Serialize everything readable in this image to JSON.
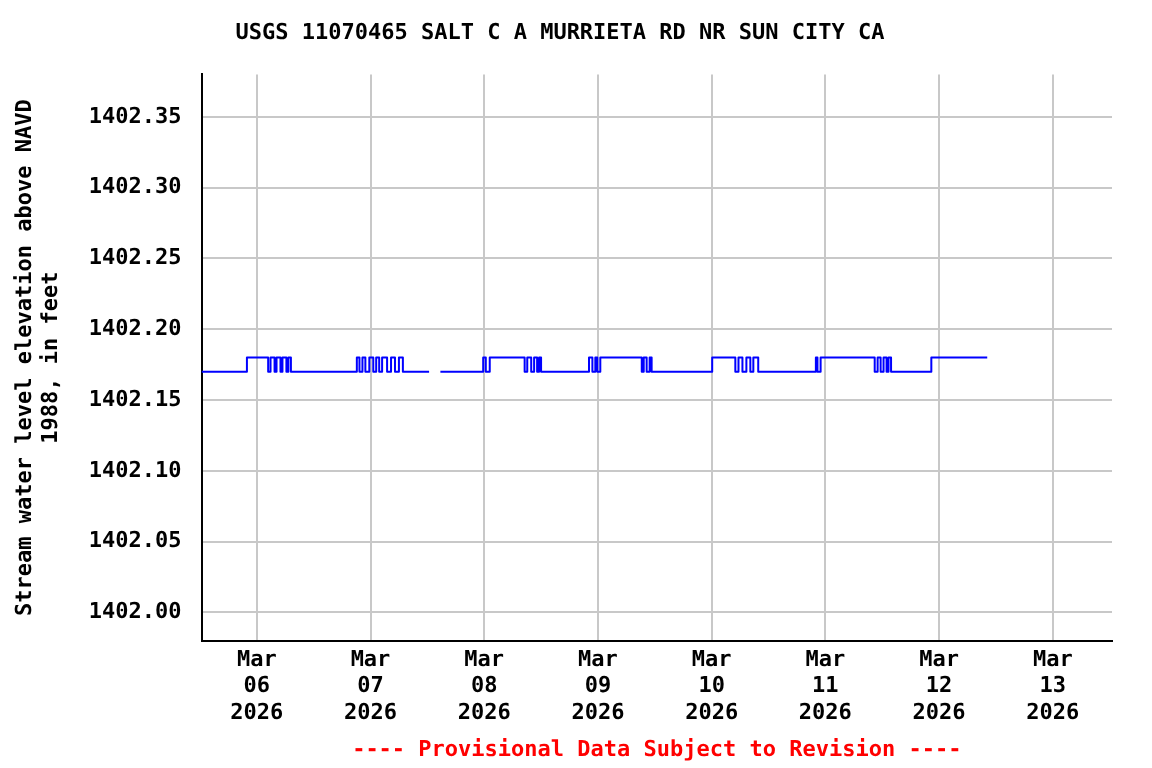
{
  "chart_data": {
    "type": "step",
    "title": "USGS 11070465 SALT C A MURRIETA RD NR SUN CITY CA",
    "ylabel": "Stream water level elevation above NAVD 1988, in feet",
    "annotations": [
      "---- Provisional Data Subject to Revision ----"
    ],
    "x": [
      "2026-03-05T12:20",
      "2026-03-05T21:55",
      "2026-03-06T02:24",
      "2026-03-06T02:54",
      "2026-03-06T03:45",
      "2026-03-06T04:10",
      "2026-03-06T05:00",
      "2026-03-06T05:25",
      "2026-03-06T06:15",
      "2026-03-06T06:40",
      "2026-03-06T07:12",
      "2026-03-06T21:07",
      "2026-03-06T21:40",
      "2026-03-06T22:18",
      "2026-03-06T22:55",
      "2026-03-06T23:45",
      "2026-03-07T00:35",
      "2026-03-07T01:12",
      "2026-03-07T01:50",
      "2026-03-07T02:27",
      "2026-03-07T03:30",
      "2026-03-07T04:20",
      "2026-03-07T05:10",
      "2026-03-07T06:00",
      "2026-03-07T06:50",
      "2026-03-07T12:22",
      "2026-03-07T12:30",
      "2026-03-07T14:45",
      "2026-03-07T23:47",
      "2026-03-08T00:20",
      "2026-03-08T01:10",
      "2026-03-08T08:32",
      "2026-03-08T09:05",
      "2026-03-08T09:55",
      "2026-03-08T10:32",
      "2026-03-08T11:10",
      "2026-03-08T11:35",
      "2026-03-08T12:00",
      "2026-03-08T22:07",
      "2026-03-08T22:50",
      "2026-03-08T23:27",
      "2026-03-08T23:52",
      "2026-03-09T00:30",
      "2026-03-09T09:15",
      "2026-03-09T09:40",
      "2026-03-09T10:17",
      "2026-03-09T10:55",
      "2026-03-09T11:20",
      "2026-03-10T00:07",
      "2026-03-10T05:00",
      "2026-03-10T05:40",
      "2026-03-10T06:30",
      "2026-03-10T07:20",
      "2026-03-10T08:10",
      "2026-03-10T08:48",
      "2026-03-10T09:50",
      "2026-03-10T22:00",
      "2026-03-10T22:20",
      "2026-03-10T23:00",
      "2026-03-11T10:25",
      "2026-03-11T11:02",
      "2026-03-11T11:40",
      "2026-03-11T12:17",
      "2026-03-11T12:55",
      "2026-03-11T13:20",
      "2026-03-11T13:52",
      "2026-03-11T22:22",
      "2026-03-12T10:10"
    ],
    "series": [
      {
        "color": "#0000ff",
        "values": [
          1402.17,
          1402.18,
          1402.17,
          1402.18,
          1402.17,
          1402.18,
          1402.17,
          1402.18,
          1402.17,
          1402.18,
          1402.17,
          1402.18,
          1402.17,
          1402.18,
          1402.17,
          1402.18,
          1402.17,
          1402.18,
          1402.17,
          1402.18,
          1402.17,
          1402.18,
          1402.17,
          1402.18,
          1402.17,
          1402.17,
          null,
          1402.17,
          1402.18,
          1402.17,
          1402.18,
          1402.17,
          1402.18,
          1402.17,
          1402.18,
          1402.17,
          1402.18,
          1402.17,
          1402.18,
          1402.17,
          1402.18,
          1402.17,
          1402.18,
          1402.17,
          1402.18,
          1402.17,
          1402.18,
          1402.17,
          1402.18,
          1402.17,
          1402.18,
          1402.17,
          1402.18,
          1402.17,
          1402.18,
          1402.17,
          1402.18,
          1402.17,
          1402.18,
          1402.17,
          1402.18,
          1402.17,
          1402.18,
          1402.17,
          1402.18,
          1402.17,
          1402.18,
          1402.18
        ]
      }
    ],
    "xlim": [
      "2026-03-05T12:20",
      "2026-03-13T12:30"
    ],
    "xticks": [
      {
        "value": "2026-03-06",
        "label": "Mar\n06\n2026"
      },
      {
        "value": "2026-03-07",
        "label": "Mar\n07\n2026"
      },
      {
        "value": "2026-03-08",
        "label": "Mar\n08\n2026"
      },
      {
        "value": "2026-03-09",
        "label": "Mar\n09\n2026"
      },
      {
        "value": "2026-03-10",
        "label": "Mar\n10\n2026"
      },
      {
        "value": "2026-03-11",
        "label": "Mar\n11\n2026"
      },
      {
        "value": "2026-03-12",
        "label": "Mar\n12\n2026"
      },
      {
        "value": "2026-03-13",
        "label": "Mar\n13\n2026"
      }
    ],
    "ylim": [
      1401.98,
      1402.38
    ],
    "yticks": [
      {
        "value": 1402.0,
        "label": "1402.00"
      },
      {
        "value": 1402.05,
        "label": "1402.05"
      },
      {
        "value": 1402.1,
        "label": "1402.10"
      },
      {
        "value": 1402.15,
        "label": "1402.15"
      },
      {
        "value": 1402.2,
        "label": "1402.20"
      },
      {
        "value": 1402.25,
        "label": "1402.25"
      },
      {
        "value": 1402.3,
        "label": "1402.30"
      },
      {
        "value": 1402.35,
        "label": "1402.35"
      }
    ],
    "grid": true,
    "legend": false,
    "marker": "none",
    "line_style": "solid"
  }
}
